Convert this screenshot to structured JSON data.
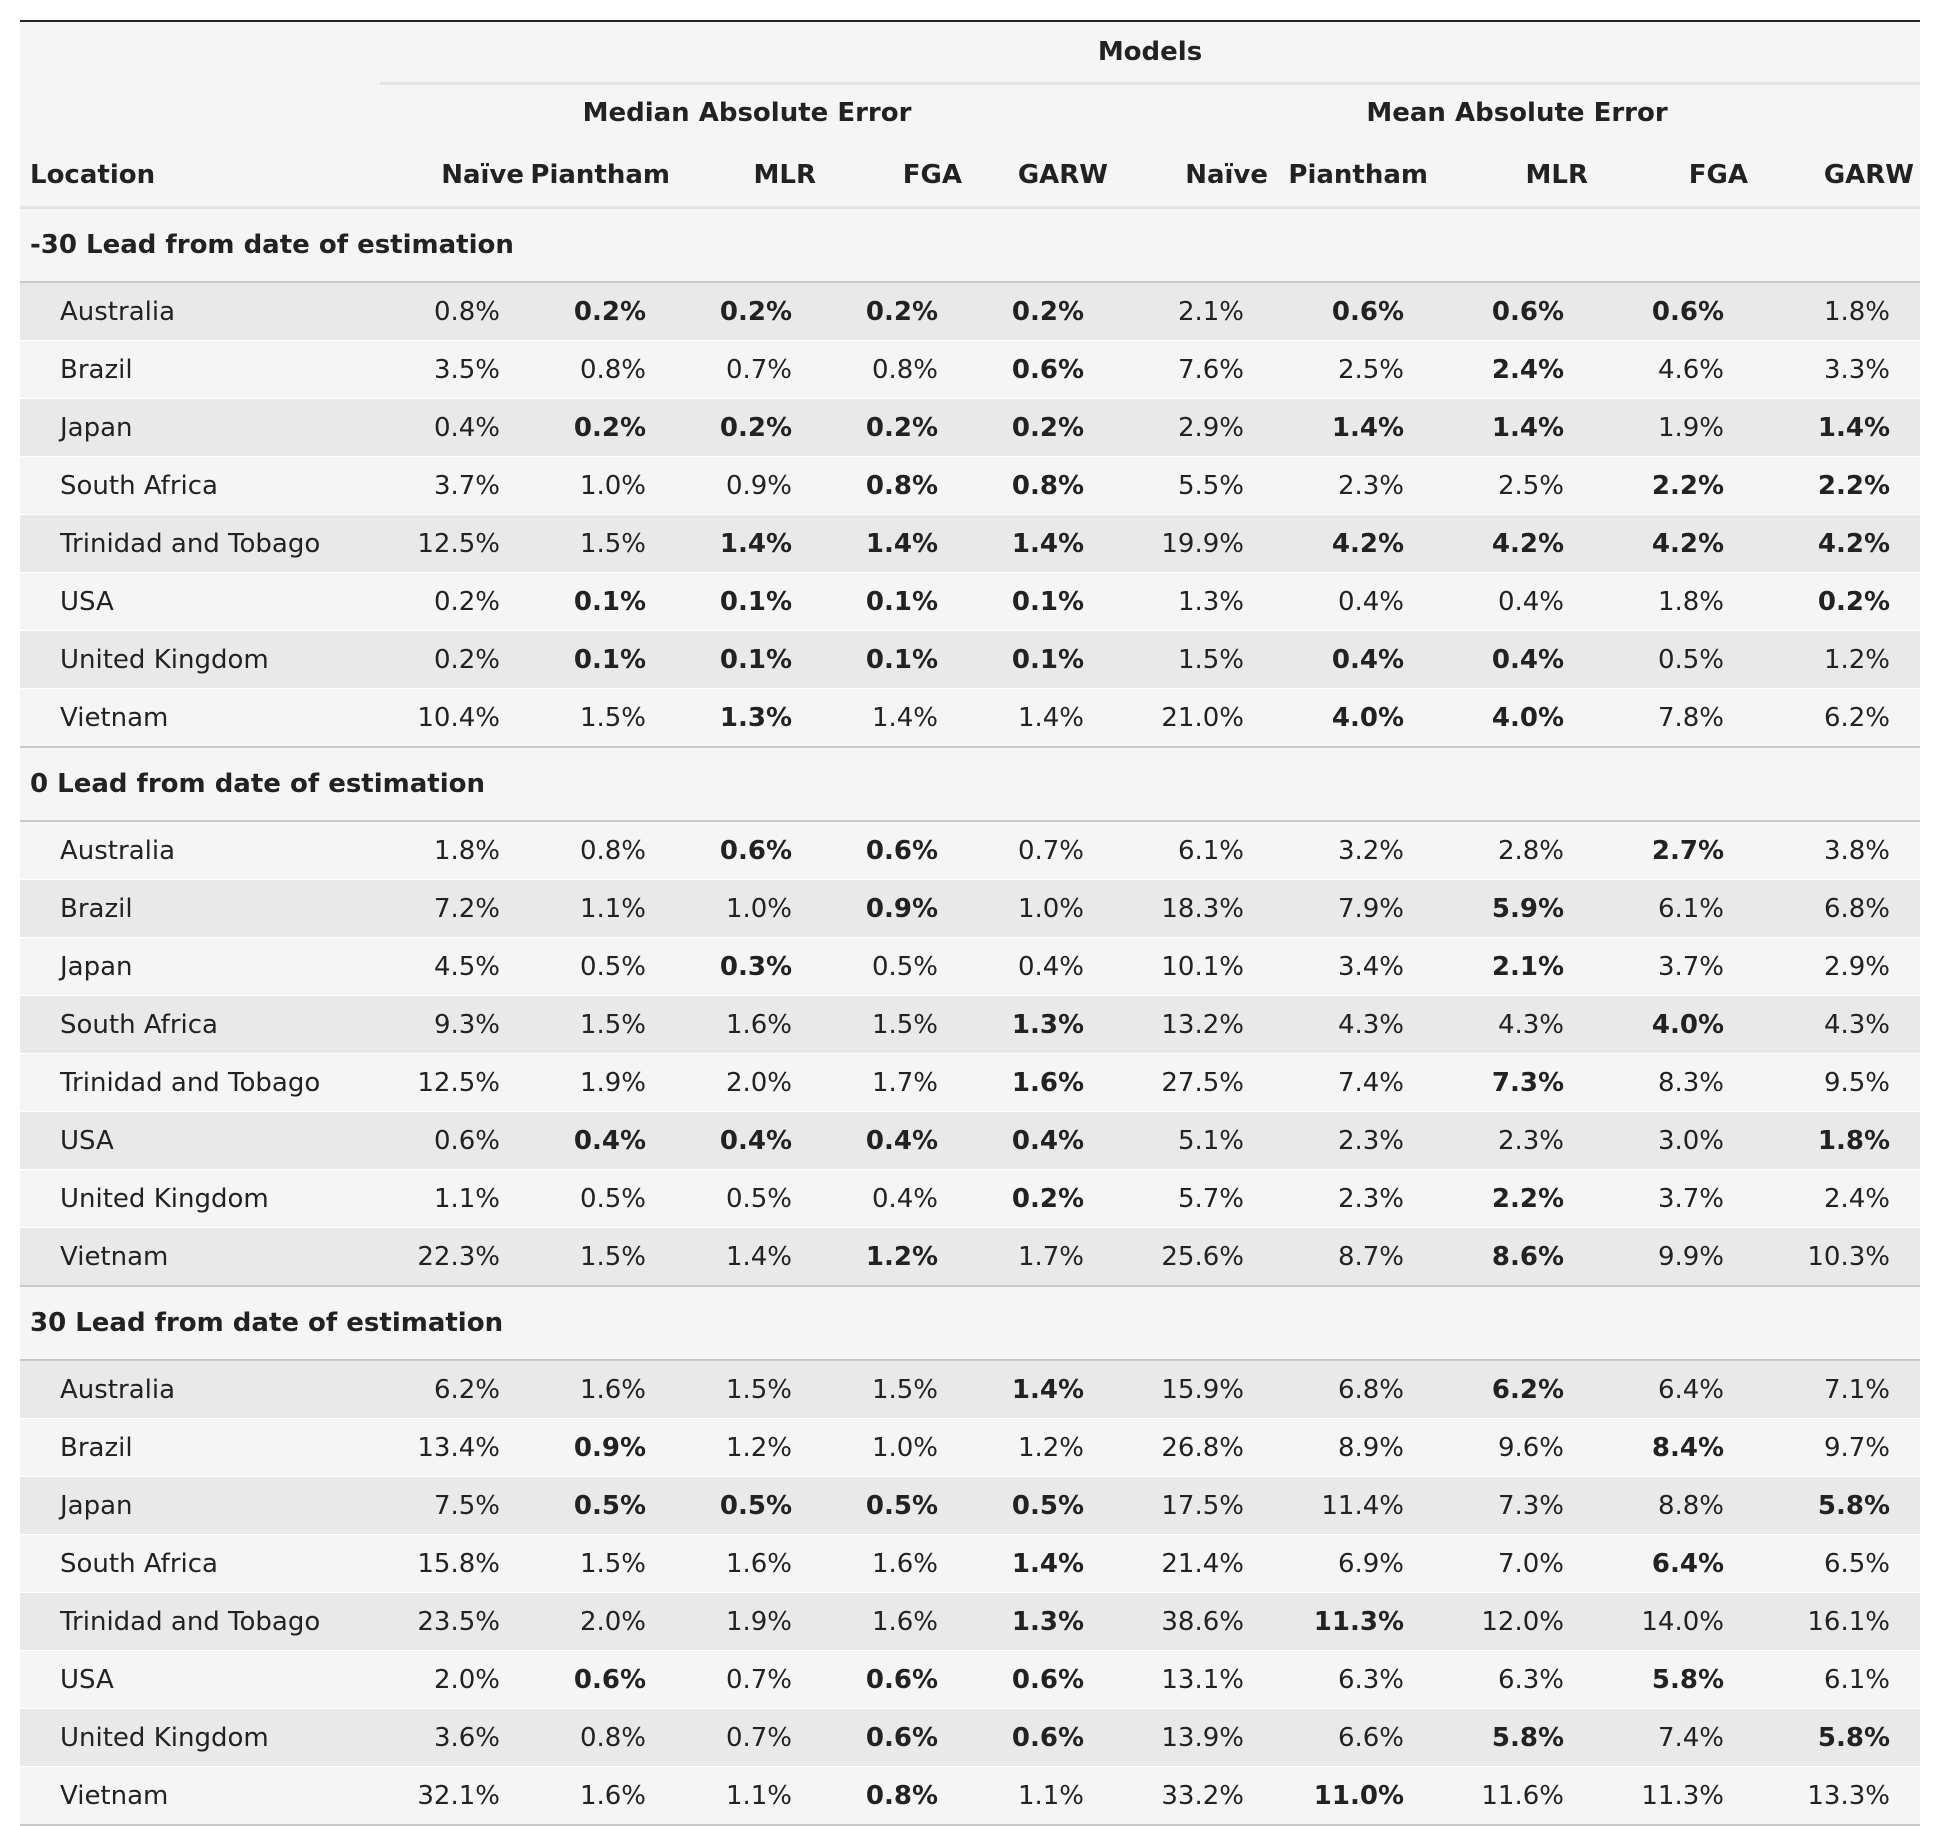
{
  "table": {
    "title": "Models",
    "location_header": "Location",
    "groups": [
      "Median Absolute Error",
      "Mean Absolute Error"
    ],
    "models": [
      "Naïve",
      "Piantham",
      "MLR",
      "FGA",
      "GARW"
    ],
    "sections": [
      {
        "label": "-30 Lead from date of estimation",
        "rows": [
          {
            "location": "Australia",
            "values": [
              "0.8%",
              "0.2%",
              "0.2%",
              "0.2%",
              "0.2%",
              "2.1%",
              "0.6%",
              "0.6%",
              "0.6%",
              "1.8%"
            ],
            "bold": [
              false,
              true,
              true,
              true,
              true,
              false,
              true,
              true,
              true,
              false
            ]
          },
          {
            "location": "Brazil",
            "values": [
              "3.5%",
              "0.8%",
              "0.7%",
              "0.8%",
              "0.6%",
              "7.6%",
              "2.5%",
              "2.4%",
              "4.6%",
              "3.3%"
            ],
            "bold": [
              false,
              false,
              false,
              false,
              true,
              false,
              false,
              true,
              false,
              false
            ]
          },
          {
            "location": "Japan",
            "values": [
              "0.4%",
              "0.2%",
              "0.2%",
              "0.2%",
              "0.2%",
              "2.9%",
              "1.4%",
              "1.4%",
              "1.9%",
              "1.4%"
            ],
            "bold": [
              false,
              true,
              true,
              true,
              true,
              false,
              true,
              true,
              false,
              true
            ]
          },
          {
            "location": "South Africa",
            "values": [
              "3.7%",
              "1.0%",
              "0.9%",
              "0.8%",
              "0.8%",
              "5.5%",
              "2.3%",
              "2.5%",
              "2.2%",
              "2.2%"
            ],
            "bold": [
              false,
              false,
              false,
              true,
              true,
              false,
              false,
              false,
              true,
              true
            ]
          },
          {
            "location": "Trinidad and Tobago",
            "values": [
              "12.5%",
              "1.5%",
              "1.4%",
              "1.4%",
              "1.4%",
              "19.9%",
              "4.2%",
              "4.2%",
              "4.2%",
              "4.2%"
            ],
            "bold": [
              false,
              false,
              true,
              true,
              true,
              false,
              true,
              true,
              true,
              true
            ]
          },
          {
            "location": "USA",
            "values": [
              "0.2%",
              "0.1%",
              "0.1%",
              "0.1%",
              "0.1%",
              "1.3%",
              "0.4%",
              "0.4%",
              "1.8%",
              "0.2%"
            ],
            "bold": [
              false,
              true,
              true,
              true,
              true,
              false,
              false,
              false,
              false,
              true
            ]
          },
          {
            "location": "United Kingdom",
            "values": [
              "0.2%",
              "0.1%",
              "0.1%",
              "0.1%",
              "0.1%",
              "1.5%",
              "0.4%",
              "0.4%",
              "0.5%",
              "1.2%"
            ],
            "bold": [
              false,
              true,
              true,
              true,
              true,
              false,
              true,
              true,
              false,
              false
            ]
          },
          {
            "location": "Vietnam",
            "values": [
              "10.4%",
              "1.5%",
              "1.3%",
              "1.4%",
              "1.4%",
              "21.0%",
              "4.0%",
              "4.0%",
              "7.8%",
              "6.2%"
            ],
            "bold": [
              false,
              false,
              true,
              false,
              false,
              false,
              true,
              true,
              false,
              false
            ]
          }
        ]
      },
      {
        "label": "0 Lead from date of estimation",
        "rows": [
          {
            "location": "Australia",
            "values": [
              "1.8%",
              "0.8%",
              "0.6%",
              "0.6%",
              "0.7%",
              "6.1%",
              "3.2%",
              "2.8%",
              "2.7%",
              "3.8%"
            ],
            "bold": [
              false,
              false,
              true,
              true,
              false,
              false,
              false,
              false,
              true,
              false
            ]
          },
          {
            "location": "Brazil",
            "values": [
              "7.2%",
              "1.1%",
              "1.0%",
              "0.9%",
              "1.0%",
              "18.3%",
              "7.9%",
              "5.9%",
              "6.1%",
              "6.8%"
            ],
            "bold": [
              false,
              false,
              false,
              true,
              false,
              false,
              false,
              true,
              false,
              false
            ]
          },
          {
            "location": "Japan",
            "values": [
              "4.5%",
              "0.5%",
              "0.3%",
              "0.5%",
              "0.4%",
              "10.1%",
              "3.4%",
              "2.1%",
              "3.7%",
              "2.9%"
            ],
            "bold": [
              false,
              false,
              true,
              false,
              false,
              false,
              false,
              true,
              false,
              false
            ]
          },
          {
            "location": "South Africa",
            "values": [
              "9.3%",
              "1.5%",
              "1.6%",
              "1.5%",
              "1.3%",
              "13.2%",
              "4.3%",
              "4.3%",
              "4.0%",
              "4.3%"
            ],
            "bold": [
              false,
              false,
              false,
              false,
              true,
              false,
              false,
              false,
              true,
              false
            ]
          },
          {
            "location": "Trinidad and Tobago",
            "values": [
              "12.5%",
              "1.9%",
              "2.0%",
              "1.7%",
              "1.6%",
              "27.5%",
              "7.4%",
              "7.3%",
              "8.3%",
              "9.5%"
            ],
            "bold": [
              false,
              false,
              false,
              false,
              true,
              false,
              false,
              true,
              false,
              false
            ]
          },
          {
            "location": "USA",
            "values": [
              "0.6%",
              "0.4%",
              "0.4%",
              "0.4%",
              "0.4%",
              "5.1%",
              "2.3%",
              "2.3%",
              "3.0%",
              "1.8%"
            ],
            "bold": [
              false,
              true,
              true,
              true,
              true,
              false,
              false,
              false,
              false,
              true
            ]
          },
          {
            "location": "United Kingdom",
            "values": [
              "1.1%",
              "0.5%",
              "0.5%",
              "0.4%",
              "0.2%",
              "5.7%",
              "2.3%",
              "2.2%",
              "3.7%",
              "2.4%"
            ],
            "bold": [
              false,
              false,
              false,
              false,
              true,
              false,
              false,
              true,
              false,
              false
            ]
          },
          {
            "location": "Vietnam",
            "values": [
              "22.3%",
              "1.5%",
              "1.4%",
              "1.2%",
              "1.7%",
              "25.6%",
              "8.7%",
              "8.6%",
              "9.9%",
              "10.3%"
            ],
            "bold": [
              false,
              false,
              false,
              true,
              false,
              false,
              false,
              true,
              false,
              false
            ]
          }
        ]
      },
      {
        "label": "30 Lead from date of estimation",
        "rows": [
          {
            "location": "Australia",
            "values": [
              "6.2%",
              "1.6%",
              "1.5%",
              "1.5%",
              "1.4%",
              "15.9%",
              "6.8%",
              "6.2%",
              "6.4%",
              "7.1%"
            ],
            "bold": [
              false,
              false,
              false,
              false,
              true,
              false,
              false,
              true,
              false,
              false
            ]
          },
          {
            "location": "Brazil",
            "values": [
              "13.4%",
              "0.9%",
              "1.2%",
              "1.0%",
              "1.2%",
              "26.8%",
              "8.9%",
              "9.6%",
              "8.4%",
              "9.7%"
            ],
            "bold": [
              false,
              true,
              false,
              false,
              false,
              false,
              false,
              false,
              true,
              false
            ]
          },
          {
            "location": "Japan",
            "values": [
              "7.5%",
              "0.5%",
              "0.5%",
              "0.5%",
              "0.5%",
              "17.5%",
              "11.4%",
              "7.3%",
              "8.8%",
              "5.8%"
            ],
            "bold": [
              false,
              true,
              true,
              true,
              true,
              false,
              false,
              false,
              false,
              true
            ]
          },
          {
            "location": "South Africa",
            "values": [
              "15.8%",
              "1.5%",
              "1.6%",
              "1.6%",
              "1.4%",
              "21.4%",
              "6.9%",
              "7.0%",
              "6.4%",
              "6.5%"
            ],
            "bold": [
              false,
              false,
              false,
              false,
              true,
              false,
              false,
              false,
              true,
              false
            ]
          },
          {
            "location": "Trinidad and Tobago",
            "values": [
              "23.5%",
              "2.0%",
              "1.9%",
              "1.6%",
              "1.3%",
              "38.6%",
              "11.3%",
              "12.0%",
              "14.0%",
              "16.1%"
            ],
            "bold": [
              false,
              false,
              false,
              false,
              true,
              false,
              true,
              false,
              false,
              false
            ]
          },
          {
            "location": "USA",
            "values": [
              "2.0%",
              "0.6%",
              "0.7%",
              "0.6%",
              "0.6%",
              "13.1%",
              "6.3%",
              "6.3%",
              "5.8%",
              "6.1%"
            ],
            "bold": [
              false,
              true,
              false,
              true,
              true,
              false,
              false,
              false,
              true,
              false
            ]
          },
          {
            "location": "United Kingdom",
            "values": [
              "3.6%",
              "0.8%",
              "0.7%",
              "0.6%",
              "0.6%",
              "13.9%",
              "6.6%",
              "5.8%",
              "7.4%",
              "5.8%"
            ],
            "bold": [
              false,
              false,
              false,
              true,
              true,
              false,
              false,
              true,
              false,
              true
            ]
          },
          {
            "location": "Vietnam",
            "values": [
              "32.1%",
              "1.6%",
              "1.1%",
              "0.8%",
              "1.1%",
              "33.2%",
              "11.0%",
              "11.6%",
              "11.3%",
              "13.3%"
            ],
            "bold": [
              false,
              false,
              false,
              true,
              false,
              false,
              true,
              false,
              false,
              false
            ]
          }
        ]
      }
    ]
  },
  "chart_data": {
    "type": "table",
    "title": "Models",
    "columns": [
      "Location",
      "Median Absolute Error: Naïve",
      "Median Absolute Error: Piantham",
      "Median Absolute Error: MLR",
      "Median Absolute Error: FGA",
      "Median Absolute Error: GARW",
      "Mean Absolute Error: Naïve",
      "Mean Absolute Error: Piantham",
      "Mean Absolute Error: MLR",
      "Mean Absolute Error: FGA",
      "Mean Absolute Error: GARW"
    ],
    "groups": [
      "-30 Lead from date of estimation",
      "0 Lead from date of estimation",
      "30 Lead from date of estimation"
    ]
  }
}
